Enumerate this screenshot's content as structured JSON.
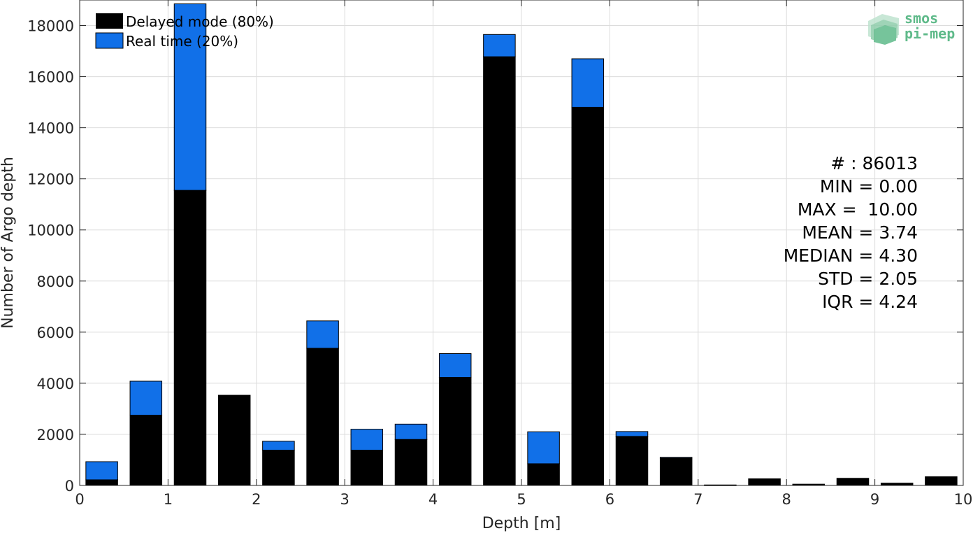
{
  "chart_data": {
    "type": "bar",
    "stacked": true,
    "xlabel": "Depth [m]",
    "ylabel": "Number of Argo depth",
    "xlim": [
      0,
      10
    ],
    "ylim": [
      0,
      19000
    ],
    "xticks": [
      0,
      1,
      2,
      3,
      4,
      5,
      6,
      7,
      8,
      9,
      10
    ],
    "yticks": [
      0,
      2000,
      4000,
      6000,
      8000,
      10000,
      12000,
      14000,
      16000,
      18000
    ],
    "grid": true,
    "legend_position": "top-left",
    "bin_centers": [
      0.25,
      0.75,
      1.25,
      1.75,
      2.25,
      2.75,
      3.25,
      3.75,
      4.25,
      4.75,
      5.25,
      5.75,
      6.25,
      6.75,
      7.25,
      7.75,
      8.25,
      8.75,
      9.25,
      9.75
    ],
    "series": [
      {
        "name": "Delayed mode (80%)",
        "color": "#000000",
        "values": [
          220,
          2750,
          11550,
          3530,
          1380,
          5370,
          1380,
          1800,
          4230,
          16780,
          850,
          14800,
          1920,
          1070,
          20,
          260,
          50,
          280,
          90,
          340
        ]
      },
      {
        "name": "Real time (20%)",
        "color": "#1170e8",
        "values": [
          710,
          1330,
          7300,
          0,
          350,
          1070,
          820,
          600,
          930,
          870,
          1250,
          1900,
          190,
          30,
          0,
          0,
          0,
          0,
          0,
          0
        ]
      }
    ],
    "stats": [
      "# : 86013",
      "MIN = 0.00",
      "MAX =  10.00",
      "MEAN = 3.74",
      "MEDIAN = 4.30",
      "STD = 2.05",
      "IQR = 4.24"
    ]
  },
  "logo": {
    "line1": "smos",
    "line2": "pi-mep",
    "color": "#5fba8a"
  }
}
